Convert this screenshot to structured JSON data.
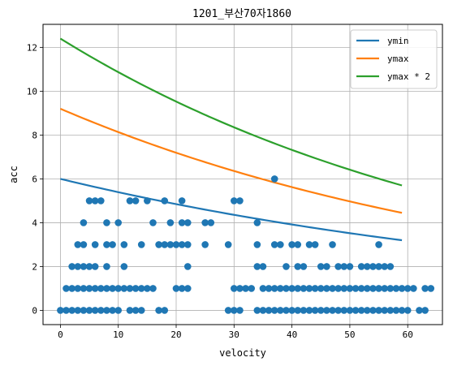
{
  "chart_data": {
    "type": "scatter",
    "title": "1201_부산70자1860",
    "xlabel": "velocity",
    "ylabel": "acc",
    "xlim": [
      -3,
      66
    ],
    "ylim": [
      -0.65,
      13.05
    ],
    "xticks": [
      0,
      10,
      20,
      30,
      40,
      50,
      60
    ],
    "yticks": [
      0,
      2,
      4,
      6,
      8,
      10,
      12
    ],
    "grid": true,
    "legend_position": "top-right",
    "series": [
      {
        "name": "ymin",
        "kind": "line",
        "color": "#1f77b4",
        "x0": 0,
        "x1": 59,
        "y_start": 6.0,
        "y_end": 3.2
      },
      {
        "name": "ymax",
        "kind": "line",
        "color": "#ff7f0e",
        "x0": 0,
        "x1": 59,
        "y_start": 9.2,
        "y_end": 4.45
      },
      {
        "name": "ymax * 2",
        "kind": "line",
        "color": "#2ca02c",
        "x0": 0,
        "x1": 59,
        "y_start": 12.4,
        "y_end": 5.7
      },
      {
        "kind": "scatter",
        "color": "#1f77b4",
        "points": [
          [
            0,
            0
          ],
          [
            1,
            0
          ],
          [
            1,
            1
          ],
          [
            2,
            0
          ],
          [
            2,
            1
          ],
          [
            2,
            2
          ],
          [
            3,
            0
          ],
          [
            3,
            1
          ],
          [
            3,
            2
          ],
          [
            3,
            3
          ],
          [
            4,
            0
          ],
          [
            4,
            1
          ],
          [
            4,
            2
          ],
          [
            4,
            3
          ],
          [
            4,
            4
          ],
          [
            5,
            0
          ],
          [
            5,
            1
          ],
          [
            5,
            2
          ],
          [
            5,
            5
          ],
          [
            6,
            0
          ],
          [
            6,
            1
          ],
          [
            6,
            2
          ],
          [
            6,
            3
          ],
          [
            6,
            5
          ],
          [
            7,
            0
          ],
          [
            7,
            1
          ],
          [
            7,
            5
          ],
          [
            8,
            0
          ],
          [
            8,
            1
          ],
          [
            8,
            2
          ],
          [
            8,
            3
          ],
          [
            8,
            4
          ],
          [
            9,
            0
          ],
          [
            9,
            1
          ],
          [
            9,
            3
          ],
          [
            10,
            0
          ],
          [
            10,
            1
          ],
          [
            10,
            4
          ],
          [
            11,
            1
          ],
          [
            11,
            2
          ],
          [
            11,
            3
          ],
          [
            12,
            0
          ],
          [
            12,
            1
          ],
          [
            12,
            5
          ],
          [
            13,
            0
          ],
          [
            13,
            1
          ],
          [
            13,
            5
          ],
          [
            14,
            0
          ],
          [
            14,
            1
          ],
          [
            14,
            3
          ],
          [
            15,
            1
          ],
          [
            15,
            5
          ],
          [
            16,
            1
          ],
          [
            16,
            4
          ],
          [
            17,
            0
          ],
          [
            17,
            3
          ],
          [
            18,
            0
          ],
          [
            18,
            3
          ],
          [
            18,
            5
          ],
          [
            19,
            3
          ],
          [
            19,
            4
          ],
          [
            20,
            1
          ],
          [
            20,
            3
          ],
          [
            21,
            1
          ],
          [
            21,
            3
          ],
          [
            21,
            4
          ],
          [
            21,
            5
          ],
          [
            22,
            1
          ],
          [
            22,
            2
          ],
          [
            22,
            3
          ],
          [
            22,
            4
          ],
          [
            25,
            3
          ],
          [
            25,
            4
          ],
          [
            26,
            4
          ],
          [
            29,
            0
          ],
          [
            29,
            3
          ],
          [
            30,
            0
          ],
          [
            30,
            1
          ],
          [
            30,
            5
          ],
          [
            31,
            0
          ],
          [
            31,
            1
          ],
          [
            31,
            5
          ],
          [
            32,
            1
          ],
          [
            33,
            1
          ],
          [
            34,
            0
          ],
          [
            34,
            2
          ],
          [
            34,
            3
          ],
          [
            34,
            4
          ],
          [
            35,
            0
          ],
          [
            35,
            1
          ],
          [
            35,
            2
          ],
          [
            36,
            0
          ],
          [
            36,
            1
          ],
          [
            37,
            0
          ],
          [
            37,
            1
          ],
          [
            37,
            3
          ],
          [
            37,
            6
          ],
          [
            38,
            0
          ],
          [
            38,
            1
          ],
          [
            38,
            3
          ],
          [
            39,
            0
          ],
          [
            39,
            1
          ],
          [
            39,
            2
          ],
          [
            40,
            0
          ],
          [
            40,
            1
          ],
          [
            40,
            3
          ],
          [
            41,
            0
          ],
          [
            41,
            1
          ],
          [
            41,
            2
          ],
          [
            41,
            3
          ],
          [
            42,
            0
          ],
          [
            42,
            1
          ],
          [
            42,
            2
          ],
          [
            43,
            0
          ],
          [
            43,
            1
          ],
          [
            43,
            3
          ],
          [
            44,
            0
          ],
          [
            44,
            1
          ],
          [
            44,
            3
          ],
          [
            45,
            0
          ],
          [
            45,
            1
          ],
          [
            45,
            2
          ],
          [
            46,
            0
          ],
          [
            46,
            1
          ],
          [
            46,
            2
          ],
          [
            47,
            0
          ],
          [
            47,
            1
          ],
          [
            47,
            3
          ],
          [
            48,
            0
          ],
          [
            48,
            1
          ],
          [
            48,
            2
          ],
          [
            49,
            0
          ],
          [
            49,
            1
          ],
          [
            49,
            2
          ],
          [
            50,
            0
          ],
          [
            50,
            1
          ],
          [
            50,
            2
          ],
          [
            51,
            0
          ],
          [
            51,
            1
          ],
          [
            52,
            0
          ],
          [
            52,
            1
          ],
          [
            52,
            2
          ],
          [
            53,
            0
          ],
          [
            53,
            1
          ],
          [
            53,
            2
          ],
          [
            54,
            0
          ],
          [
            54,
            1
          ],
          [
            54,
            2
          ],
          [
            55,
            0
          ],
          [
            55,
            1
          ],
          [
            55,
            2
          ],
          [
            55,
            3
          ],
          [
            56,
            0
          ],
          [
            56,
            1
          ],
          [
            56,
            2
          ],
          [
            57,
            0
          ],
          [
            57,
            1
          ],
          [
            57,
            2
          ],
          [
            58,
            0
          ],
          [
            58,
            1
          ],
          [
            59,
            0
          ],
          [
            59,
            1
          ],
          [
            60,
            0
          ],
          [
            60,
            1
          ],
          [
            61,
            1
          ],
          [
            62,
            0
          ],
          [
            63,
            0
          ],
          [
            63,
            1
          ],
          [
            64,
            1
          ]
        ]
      }
    ]
  }
}
